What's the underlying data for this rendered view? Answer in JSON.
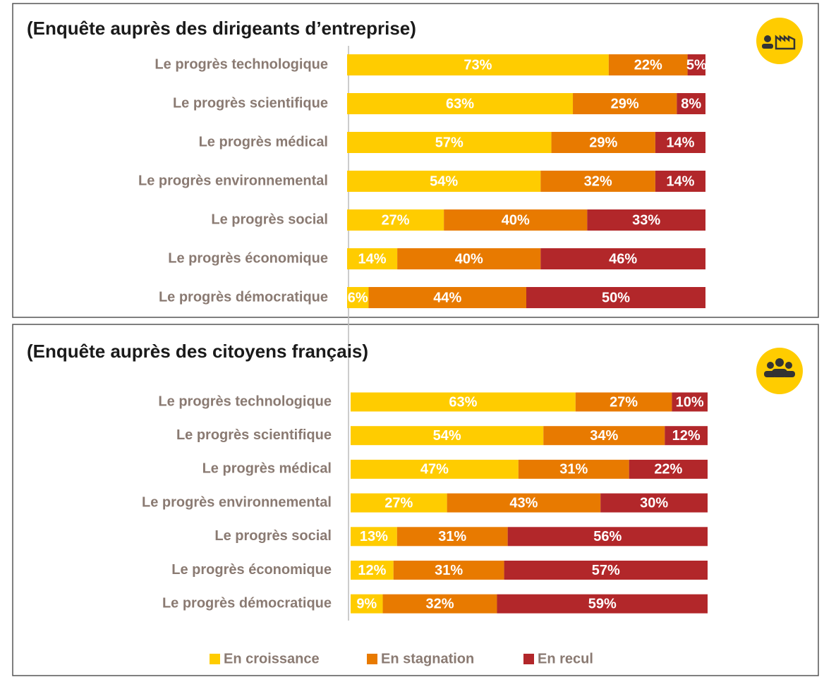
{
  "chart_data": [
    {
      "type": "bar",
      "orientation": "horizontal",
      "stacked": true,
      "title": "(Enquête auprès des dirigeants d’entreprise)",
      "categories": [
        "Le progrès technologique",
        "Le progrès scientifique",
        "Le progrès médical",
        "Le progrès environnemental",
        "Le progrès social",
        "Le progrès économique",
        "Le progrès démocratique"
      ],
      "xlim": [
        0,
        100
      ],
      "series": [
        {
          "color": "#FFCC00",
          "values": [
            73,
            63,
            57,
            54,
            27,
            14,
            6
          ],
          "value_labels": [
            "73%",
            "63%",
            "57%",
            "54%",
            "27%",
            "14%",
            "6%"
          ]
        },
        {
          "color": "#E87A00",
          "values": [
            22,
            29,
            29,
            32,
            40,
            40,
            44
          ],
          "value_labels": [
            "22%",
            "29%",
            "29%",
            "32%",
            "40%",
            "40%",
            "44%"
          ]
        },
        {
          "color": "#B2272A",
          "values": [
            5,
            8,
            14,
            14,
            33,
            46,
            50
          ],
          "value_labels": [
            "5%",
            "8%",
            "14%",
            "14%",
            "33%",
            "46%",
            "50%"
          ]
        }
      ]
    },
    {
      "type": "bar",
      "orientation": "horizontal",
      "stacked": true,
      "title": "(Enquête auprès des citoyens français)",
      "categories": [
        "Le progrès technologique",
        "Le progrès scientifique",
        "Le progrès médical",
        "Le progrès environnemental",
        "Le progrès social",
        "Le progrès économique",
        "Le progrès démocratique"
      ],
      "xlim": [
        0,
        100
      ],
      "series": [
        {
          "name": "En croissance",
          "color": "#FFCC00",
          "values": [
            63,
            54,
            47,
            27,
            13,
            12,
            9
          ],
          "value_labels": [
            "63%",
            "54%",
            "47%",
            "27%",
            "13%",
            "12%",
            "9%"
          ]
        },
        {
          "name": "En stagnation",
          "color": "#E87A00",
          "values": [
            27,
            34,
            31,
            43,
            31,
            31,
            32
          ],
          "value_labels": [
            "27%",
            "34%",
            "31%",
            "43%",
            "31%",
            "31%",
            "32%"
          ]
        },
        {
          "name": "En recul",
          "color": "#B2272A",
          "values": [
            10,
            12,
            22,
            30,
            56,
            57,
            59
          ],
          "value_labels": [
            "10%",
            "12%",
            "22%",
            "30%",
            "56%",
            "57%",
            "59%"
          ]
        }
      ]
    }
  ]
}
